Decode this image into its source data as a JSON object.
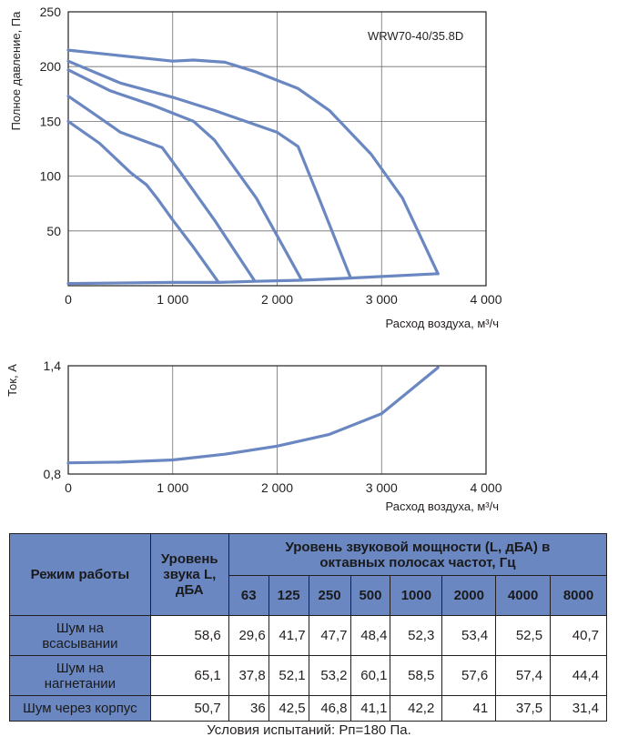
{
  "chart_data": [
    {
      "type": "line",
      "title": "",
      "annotation": "WRW70-40/35.8D",
      "xlabel": "Расход воздуха, м³/ч",
      "ylabel": "Полное давление, Па",
      "xlim": [
        0,
        4000
      ],
      "ylim": [
        0,
        250
      ],
      "x_ticks": [
        "0",
        "1 000",
        "2 000",
        "3 000",
        "4 000"
      ],
      "y_ticks": [
        "50",
        "100",
        "150",
        "200",
        "250"
      ],
      "grid": true,
      "series": [
        {
          "points": [
            [
              0,
              150
            ],
            [
              300,
              130
            ],
            [
              600,
              103
            ],
            [
              750,
              92
            ],
            [
              850,
              80
            ],
            [
              1000,
              60
            ],
            [
              1200,
              35
            ],
            [
              1440,
              3
            ]
          ]
        },
        {
          "points": [
            [
              0,
              173
            ],
            [
              200,
              160
            ],
            [
              500,
              140
            ],
            [
              900,
              126
            ],
            [
              1100,
              100
            ],
            [
              1400,
              60
            ],
            [
              1780,
              5
            ]
          ]
        },
        {
          "points": [
            [
              0,
              197
            ],
            [
              400,
              178
            ],
            [
              800,
              165
            ],
            [
              1200,
              150
            ],
            [
              1400,
              133
            ],
            [
              1800,
              80
            ],
            [
              2230,
              6
            ]
          ]
        },
        {
          "points": [
            [
              0,
              205
            ],
            [
              500,
              185
            ],
            [
              1000,
              172
            ],
            [
              1400,
              160
            ],
            [
              2000,
              140
            ],
            [
              2200,
              127
            ],
            [
              2400,
              80
            ],
            [
              2700,
              8
            ]
          ]
        },
        {
          "points": [
            [
              0,
              215
            ],
            [
              1000,
              205
            ],
            [
              1200,
              206
            ],
            [
              1500,
              204
            ],
            [
              1800,
              195
            ],
            [
              2200,
              180
            ],
            [
              2500,
              160
            ],
            [
              2900,
              120
            ],
            [
              3200,
              80
            ],
            [
              3540,
              11
            ]
          ]
        },
        {
          "points": [
            [
              0,
              2
            ],
            [
              1000,
              3
            ],
            [
              1440,
              3
            ],
            [
              1780,
              4
            ],
            [
              2230,
              5
            ],
            [
              2700,
              7
            ],
            [
              3540,
              11
            ]
          ]
        }
      ]
    },
    {
      "type": "line",
      "title": "",
      "xlabel": "Расход воздуха, м³/ч",
      "ylabel": "Ток, А",
      "xlim": [
        0,
        4000
      ],
      "ylim": [
        0.8,
        1.4
      ],
      "x_ticks": [
        "0",
        "1 000",
        "2 000",
        "3 000",
        "4 000"
      ],
      "y_ticks": [
        "0,8",
        "1,4"
      ],
      "grid": true,
      "series": [
        {
          "points": [
            [
              0,
              0.862
            ],
            [
              500,
              0.866
            ],
            [
              1000,
              0.878
            ],
            [
              1500,
              0.91
            ],
            [
              2000,
              0.955
            ],
            [
              2500,
              1.02
            ],
            [
              3000,
              1.135
            ],
            [
              3540,
              1.39
            ]
          ]
        }
      ]
    }
  ],
  "colors": {
    "accent": "#6a87c2",
    "text": "#231f20",
    "grid": "#6d6e71"
  },
  "table": {
    "mode_header": "Режим работы",
    "level_header": "Уровень звука L, дБА",
    "power_header": "Уровень звуковой мощности (L, дБА) в октавных полосах частот, Гц",
    "freqs": [
      "63",
      "125",
      "250",
      "500",
      "1000",
      "2000",
      "4000",
      "8000"
    ],
    "rows": [
      {
        "name": "Шум на всасывании",
        "level": "58,6",
        "values": [
          "29,6",
          "41,7",
          "47,7",
          "48,4",
          "52,3",
          "53,4",
          "52,5",
          "40,7"
        ]
      },
      {
        "name": "Шум на нагнетании",
        "level": "65,1",
        "values": [
          "37,8",
          "52,1",
          "53,2",
          "60,1",
          "58,5",
          "57,6",
          "57,4",
          "44,4"
        ]
      },
      {
        "name": "Шум через корпус",
        "level": "50,7",
        "values": [
          "36",
          "42,5",
          "46,8",
          "41,1",
          "42,2",
          "41",
          "37,5",
          "31,4"
        ]
      }
    ]
  },
  "footnote": "Условия испытаний: Pп=180 Па."
}
